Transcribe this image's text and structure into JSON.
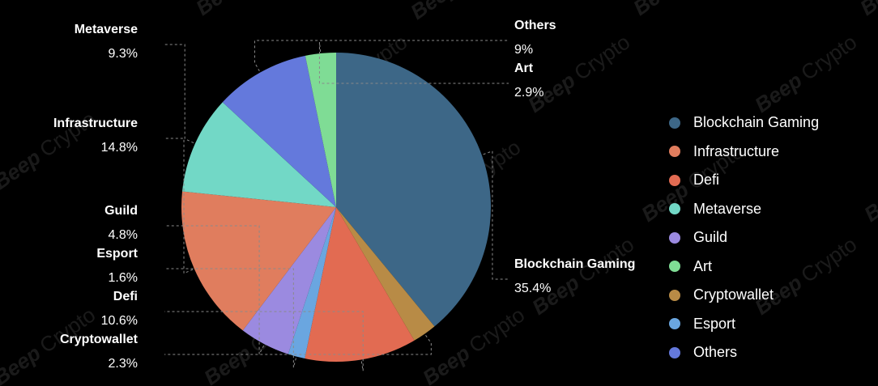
{
  "watermark": {
    "brand": "Beep",
    "word": "Crypto"
  },
  "chart_data": {
    "type": "pie",
    "slices": [
      {
        "name": "Blockchain Gaming",
        "pct_label": "35.4%",
        "value": 35.4,
        "color": "#3d6787"
      },
      {
        "name": "Cryptowallet",
        "pct_label": "2.3%",
        "value": 2.3,
        "color": "#b88b46"
      },
      {
        "name": "Defi",
        "pct_label": "10.6%",
        "value": 10.6,
        "color": "#e26b52"
      },
      {
        "name": "Esport",
        "pct_label": "1.6%",
        "value": 1.6,
        "color": "#6aa6e0"
      },
      {
        "name": "Guild",
        "pct_label": "4.8%",
        "value": 4.8,
        "color": "#9b8ae0"
      },
      {
        "name": "Infrastructure",
        "pct_label": "14.8%",
        "value": 14.8,
        "color": "#e07d5e"
      },
      {
        "name": "Metaverse",
        "pct_label": "9.3%",
        "value": 9.3,
        "color": "#72d8c6"
      },
      {
        "name": "Others",
        "pct_label": "9%",
        "value": 9,
        "color": "#6479dc"
      },
      {
        "name": "Art",
        "pct_label": "2.9%",
        "value": 2.9,
        "color": "#7fdc95"
      }
    ],
    "legend": {
      "placement": "right",
      "items": [
        {
          "label": "Blockchain Gaming",
          "color": "#3d6787"
        },
        {
          "label": "Infrastructure",
          "color": "#e07d5e"
        },
        {
          "label": "Defi",
          "color": "#e26b52"
        },
        {
          "label": "Metaverse",
          "color": "#72d8c6"
        },
        {
          "label": "Guild",
          "color": "#9b8ae0"
        },
        {
          "label": "Art",
          "color": "#7fdc95"
        },
        {
          "label": "Cryptowallet",
          "color": "#b88b46"
        },
        {
          "label": "Esport",
          "color": "#6aa6e0"
        },
        {
          "label": "Others",
          "color": "#6479dc"
        }
      ]
    }
  }
}
